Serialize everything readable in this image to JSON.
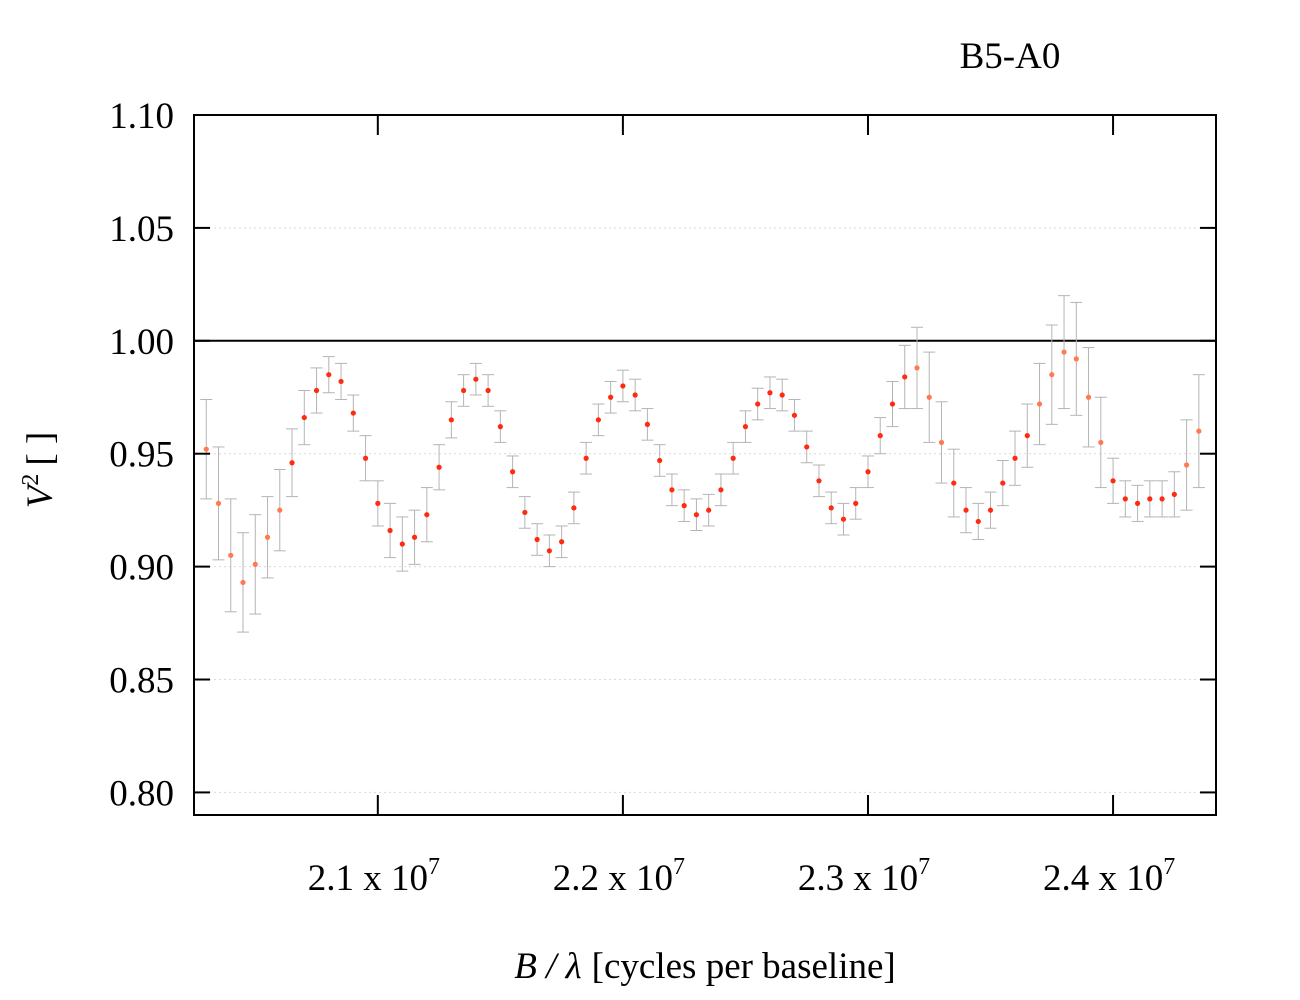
{
  "chart_data": {
    "type": "scatter",
    "title": "B5-A0",
    "xlabel": {
      "var": "B / λ",
      "rest": "[cycles per baseline]"
    },
    "ylabel": {
      "var": "V",
      "sup": "2",
      "rest": "[ ]"
    },
    "xlim": [
      20250000,
      24420000
    ],
    "ylim": [
      0.79,
      1.1
    ],
    "y_ticks": [
      "1.10",
      "1.05",
      "1.00",
      "0.95",
      "0.90",
      "0.85",
      "0.80"
    ],
    "x_ticks": [
      {
        "mant": "2.1 x 10",
        "exp": "7",
        "value": 21000000
      },
      {
        "mant": "2.2 x 10",
        "exp": "7",
        "value": 22000000
      },
      {
        "mant": "2.3 x 10",
        "exp": "7",
        "value": 23000000
      },
      {
        "mant": "2.4 x 10",
        "exp": "7",
        "value": 24000000
      }
    ],
    "reference_line": 1.0,
    "grid": "horizontal dotted",
    "colors": {
      "point": "#ff2a10",
      "point_light": "#ff7a50",
      "errorbar": "#b4b4b4",
      "grid": "#d9d9d9",
      "axis": "#000000"
    },
    "series": [
      {
        "x": [
          20300000,
          20350000,
          20400000,
          20450000,
          20500000,
          20550000,
          20600000,
          20650000,
          20700000,
          20750000,
          20800000,
          20850000,
          20900000,
          20950000,
          21000000,
          21050000,
          21100000,
          21150000,
          21200000,
          21250000,
          21300000,
          21350000,
          21400000,
          21450000,
          21500000,
          21550000,
          21600000,
          21650000,
          21700000,
          21750000,
          21800000,
          21850000,
          21900000,
          21950000,
          22000000,
          22050000,
          22100000,
          22150000,
          22200000,
          22250000,
          22300000,
          22350000,
          22400000,
          22450000,
          22500000,
          22550000,
          22600000,
          22650000,
          22700000,
          22750000,
          22800000,
          22850000,
          22900000,
          22950000,
          23000000,
          23050000,
          23100000,
          23150000,
          23200000,
          23250000,
          23300000,
          23350000,
          23400000,
          23450000,
          23500000,
          23550000,
          23600000,
          23650000,
          23700000,
          23750000,
          23800000,
          23850000,
          23900000,
          23950000,
          24000000,
          24050000,
          24100000,
          24150000,
          24200000,
          24250000,
          24300000,
          24350000
        ],
        "y": [
          0.952,
          0.928,
          0.905,
          0.893,
          0.901,
          0.913,
          0.925,
          0.946,
          0.966,
          0.978,
          0.985,
          0.982,
          0.968,
          0.948,
          0.928,
          0.916,
          0.91,
          0.913,
          0.923,
          0.944,
          0.965,
          0.978,
          0.983,
          0.978,
          0.962,
          0.942,
          0.924,
          0.912,
          0.907,
          0.911,
          0.926,
          0.948,
          0.965,
          0.975,
          0.98,
          0.976,
          0.963,
          0.947,
          0.934,
          0.927,
          0.923,
          0.925,
          0.934,
          0.948,
          0.962,
          0.972,
          0.977,
          0.976,
          0.967,
          0.953,
          0.938,
          0.926,
          0.921,
          0.928,
          0.942,
          0.958,
          0.972,
          0.984,
          0.988,
          0.975,
          0.955,
          0.937,
          0.925,
          0.92,
          0.925,
          0.937,
          0.948,
          0.958,
          0.972,
          0.985,
          0.995,
          0.992,
          0.975,
          0.955,
          0.938,
          0.93,
          0.928,
          0.93,
          0.93,
          0.932,
          0.945,
          0.96
        ],
        "yerr": [
          0.022,
          0.025,
          0.025,
          0.022,
          0.022,
          0.018,
          0.018,
          0.015,
          0.012,
          0.01,
          0.008,
          0.008,
          0.008,
          0.01,
          0.01,
          0.012,
          0.012,
          0.012,
          0.012,
          0.01,
          0.008,
          0.007,
          0.007,
          0.007,
          0.007,
          0.007,
          0.007,
          0.007,
          0.007,
          0.007,
          0.007,
          0.007,
          0.007,
          0.007,
          0.007,
          0.007,
          0.007,
          0.007,
          0.007,
          0.007,
          0.007,
          0.007,
          0.007,
          0.007,
          0.007,
          0.007,
          0.007,
          0.007,
          0.007,
          0.007,
          0.007,
          0.007,
          0.007,
          0.007,
          0.007,
          0.008,
          0.01,
          0.014,
          0.018,
          0.02,
          0.018,
          0.015,
          0.01,
          0.008,
          0.008,
          0.01,
          0.012,
          0.014,
          0.018,
          0.022,
          0.025,
          0.025,
          0.022,
          0.02,
          0.01,
          0.008,
          0.008,
          0.008,
          0.008,
          0.01,
          0.02,
          0.025
        ]
      }
    ]
  }
}
